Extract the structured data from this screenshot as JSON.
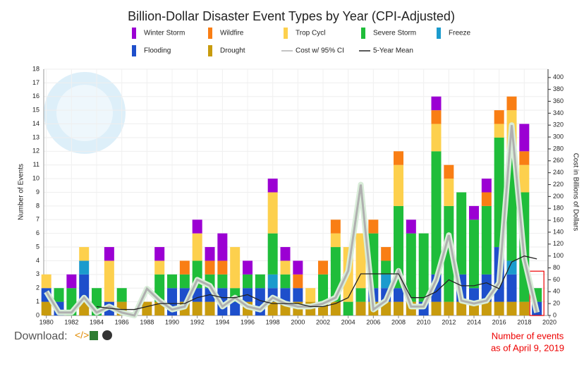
{
  "chart_data": {
    "type": "bar",
    "title": "Billion-Dollar Disaster Event Types by Year (CPI-Adjusted)",
    "y_label": "Number of Events",
    "y2_label": "Cost in Billions of Dollars",
    "x": [
      1980,
      1981,
      1982,
      1983,
      1984,
      1985,
      1986,
      1987,
      1988,
      1989,
      1990,
      1991,
      1992,
      1993,
      1994,
      1995,
      1996,
      1997,
      1998,
      1999,
      2000,
      2001,
      2002,
      2003,
      2004,
      2005,
      2006,
      2007,
      2008,
      2009,
      2010,
      2011,
      2012,
      2013,
      2014,
      2015,
      2016,
      2017,
      2018,
      2019
    ],
    "xlim": [
      1979.4,
      2020
    ],
    "xticks": [
      1980,
      1982,
      1984,
      1986,
      1988,
      1990,
      1992,
      1994,
      1996,
      1998,
      2000,
      2002,
      2004,
      2006,
      2008,
      2010,
      2012,
      2014,
      2016,
      2018,
      2020
    ],
    "ylim": [
      0,
      18
    ],
    "yticks": [
      0,
      1,
      2,
      3,
      4,
      5,
      6,
      7,
      8,
      9,
      10,
      11,
      12,
      13,
      14,
      15,
      16,
      17,
      18
    ],
    "y2lim": [
      0,
      414
    ],
    "y2ticks": [
      0,
      20,
      40,
      60,
      80,
      100,
      120,
      140,
      160,
      180,
      200,
      220,
      240,
      260,
      280,
      300,
      320,
      340,
      360,
      380,
      400
    ],
    "grid": true,
    "series": [
      {
        "name": "Winter Storm",
        "color": "#9b00d3",
        "values": [
          0,
          0,
          1,
          0,
          0,
          1,
          0,
          0,
          0,
          1,
          0,
          0,
          1,
          1,
          2,
          0,
          1,
          0,
          1,
          1,
          1,
          0,
          0,
          0,
          0,
          0,
          0,
          0,
          0,
          1,
          0,
          1,
          0,
          0,
          1,
          1,
          0,
          0,
          2,
          0
        ]
      },
      {
        "name": "Wildfire",
        "color": "#f97e14",
        "values": [
          0,
          0,
          0,
          0,
          0,
          0,
          0,
          0,
          0,
          0,
          0,
          1,
          0,
          1,
          1,
          0,
          0,
          0,
          0,
          0,
          1,
          0,
          1,
          1,
          0,
          0,
          1,
          1,
          1,
          0,
          0,
          1,
          1,
          0,
          0,
          1,
          1,
          1,
          1,
          0
        ]
      },
      {
        "name": "Trop Cycl",
        "color": "#fdd04d",
        "values": [
          1,
          0,
          0,
          1,
          0,
          3,
          0,
          0,
          0,
          1,
          0,
          0,
          2,
          0,
          0,
          3,
          0,
          0,
          3,
          1,
          0,
          1,
          0,
          1,
          4,
          4,
          0,
          0,
          3,
          0,
          0,
          2,
          2,
          0,
          0,
          0,
          1,
          3,
          2,
          0
        ]
      },
      {
        "name": "Severe Storm",
        "color": "#1fbd3a",
        "values": [
          0,
          1,
          2,
          0,
          2,
          0,
          1,
          0,
          0,
          2,
          1,
          1,
          2,
          1,
          1,
          1,
          1,
          1,
          3,
          1,
          0,
          0,
          2,
          4,
          1,
          1,
          4,
          1,
          6,
          5,
          5,
          9,
          7,
          6,
          5,
          5,
          8,
          8,
          8,
          1
        ]
      },
      {
        "name": "Freeze",
        "color": "#1b9bcd",
        "values": [
          0,
          0,
          0,
          1,
          0,
          0,
          0,
          0,
          0,
          0,
          0,
          0,
          0,
          0,
          0,
          0,
          0,
          0,
          1,
          0,
          0,
          0,
          0,
          0,
          0,
          0,
          0,
          1,
          0,
          0,
          0,
          0,
          0,
          0,
          0,
          0,
          0,
          1,
          0,
          0
        ]
      },
      {
        "name": "Flooding",
        "color": "#1e4fcb",
        "values": [
          1,
          1,
          0,
          2,
          0,
          1,
          0,
          0,
          0,
          0,
          2,
          1,
          1,
          1,
          2,
          1,
          1,
          2,
          1,
          1,
          1,
          0,
          0,
          0,
          0,
          0,
          1,
          1,
          1,
          0,
          1,
          2,
          0,
          2,
          1,
          2,
          4,
          2,
          0,
          1
        ]
      },
      {
        "name": "Drought",
        "color": "#c89b0e",
        "values": [
          1,
          0,
          0,
          1,
          0,
          0,
          1,
          0,
          1,
          1,
          0,
          1,
          1,
          1,
          0,
          0,
          1,
          0,
          1,
          1,
          1,
          1,
          1,
          1,
          0,
          1,
          1,
          1,
          1,
          1,
          0,
          1,
          1,
          1,
          1,
          1,
          1,
          1,
          1,
          0
        ]
      },
      {
        "name": "Cost w/ 95% CI",
        "color": "#b0b0b0",
        "type": "line",
        "axis": "y2",
        "values": [
          40,
          5,
          5,
          30,
          5,
          15,
          5,
          0,
          45,
          25,
          10,
          15,
          60,
          50,
          15,
          30,
          15,
          10,
          30,
          20,
          15,
          15,
          20,
          30,
          75,
          220,
          10,
          25,
          75,
          15,
          15,
          60,
          135,
          25,
          20,
          25,
          55,
          320,
          95,
          5
        ]
      },
      {
        "name": "5-Year Mean",
        "color": "#222222",
        "type": "line",
        "axis": "y2",
        "values": [
          null,
          null,
          null,
          null,
          15,
          12,
          10,
          10,
          15,
          20,
          20,
          20,
          30,
          35,
          30,
          30,
          35,
          25,
          20,
          20,
          20,
          15,
          15,
          20,
          30,
          70,
          70,
          70,
          70,
          30,
          30,
          40,
          60,
          50,
          50,
          55,
          45,
          90,
          100,
          95
        ]
      }
    ],
    "annotation": [
      "Number of events",
      "as of April 9, 2019"
    ]
  },
  "footer": {
    "download": "Download:"
  }
}
